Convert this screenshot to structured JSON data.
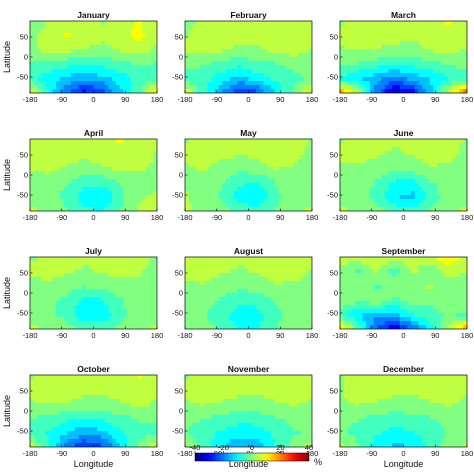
{
  "chart_data": {
    "type": "heatmap",
    "panels": [
      {
        "title": "January",
        "anomaly": [
          [
            -2,
            3,
            6,
            4,
            2,
            5,
            8,
            3
          ],
          [
            0,
            5,
            8,
            6,
            4,
            6,
            9,
            4
          ],
          [
            2,
            4,
            4,
            2,
            1,
            3,
            5,
            1
          ],
          [
            -3,
            -4,
            -6,
            -8,
            -6,
            -4,
            -2,
            -3
          ],
          [
            -6,
            -10,
            -14,
            -16,
            -14,
            -10,
            -6,
            -5
          ],
          [
            10,
            -8,
            -22,
            -30,
            -26,
            -14,
            -4,
            14
          ]
        ]
      },
      {
        "title": "February",
        "anomaly": [
          [
            0,
            4,
            6,
            4,
            3,
            5,
            6,
            2
          ],
          [
            2,
            6,
            6,
            5,
            3,
            5,
            7,
            3
          ],
          [
            3,
            5,
            3,
            1,
            2,
            4,
            5,
            2
          ],
          [
            -1,
            -2,
            -4,
            -6,
            -4,
            -3,
            -1,
            0
          ],
          [
            -4,
            -6,
            -10,
            -14,
            -10,
            -6,
            -4,
            -2
          ],
          [
            8,
            -6,
            -18,
            -28,
            -24,
            -12,
            -2,
            10
          ]
        ]
      },
      {
        "title": "March",
        "anomaly": [
          [
            2,
            5,
            7,
            5,
            4,
            6,
            8,
            4
          ],
          [
            3,
            6,
            6,
            5,
            4,
            6,
            7,
            4
          ],
          [
            2,
            3,
            2,
            1,
            0,
            3,
            4,
            2
          ],
          [
            -1,
            -3,
            -5,
            -8,
            -6,
            -4,
            -2,
            0
          ],
          [
            -8,
            -12,
            -16,
            -20,
            -16,
            -12,
            -8,
            -6
          ],
          [
            18,
            6,
            -20,
            -36,
            -30,
            -14,
            6,
            24
          ]
        ]
      },
      {
        "title": "April",
        "anomaly": [
          [
            3,
            6,
            5,
            4,
            6,
            8,
            6,
            3
          ],
          [
            4,
            7,
            5,
            4,
            6,
            7,
            5,
            2
          ],
          [
            3,
            4,
            2,
            0,
            2,
            4,
            3,
            2
          ],
          [
            1,
            0,
            -2,
            -6,
            -6,
            -2,
            1,
            2
          ],
          [
            2,
            0,
            -4,
            -10,
            -12,
            -4,
            2,
            3
          ],
          [
            3,
            2,
            -2,
            -6,
            -8,
            -2,
            3,
            4
          ]
        ]
      },
      {
        "title": "May",
        "anomaly": [
          [
            2,
            4,
            5,
            4,
            4,
            6,
            5,
            2
          ],
          [
            3,
            5,
            4,
            3,
            4,
            6,
            4,
            1
          ],
          [
            2,
            3,
            1,
            -1,
            1,
            3,
            2,
            1
          ],
          [
            2,
            1,
            -2,
            -6,
            -8,
            -2,
            0,
            1
          ],
          [
            3,
            1,
            -3,
            -10,
            -12,
            -4,
            1,
            2
          ],
          [
            3,
            2,
            0,
            -4,
            -6,
            -2,
            2,
            3
          ]
        ]
      },
      {
        "title": "June",
        "anomaly": [
          [
            2,
            4,
            4,
            3,
            4,
            5,
            4,
            2
          ],
          [
            3,
            4,
            3,
            2,
            3,
            5,
            4,
            1
          ],
          [
            2,
            2,
            1,
            -1,
            0,
            2,
            2,
            1
          ],
          [
            1,
            0,
            -3,
            -8,
            -9,
            -3,
            0,
            1
          ],
          [
            2,
            0,
            -4,
            -12,
            -14,
            -5,
            0,
            2
          ],
          [
            3,
            2,
            0,
            -4,
            -6,
            -2,
            2,
            3
          ]
        ]
      },
      {
        "title": "July",
        "anomaly": [
          [
            2,
            3,
            4,
            3,
            3,
            4,
            4,
            2
          ],
          [
            3,
            4,
            3,
            2,
            3,
            4,
            3,
            1
          ],
          [
            1,
            2,
            0,
            -2,
            -1,
            1,
            2,
            1
          ],
          [
            1,
            -1,
            -4,
            -9,
            -8,
            -3,
            0,
            1
          ],
          [
            2,
            0,
            -5,
            -12,
            -11,
            -4,
            1,
            2
          ],
          [
            3,
            2,
            0,
            -3,
            -4,
            -1,
            2,
            3
          ]
        ]
      },
      {
        "title": "August",
        "anomaly": [
          [
            3,
            5,
            4,
            3,
            4,
            6,
            5,
            3
          ],
          [
            3,
            5,
            3,
            2,
            3,
            5,
            4,
            2
          ],
          [
            2,
            2,
            0,
            -1,
            0,
            2,
            2,
            1
          ],
          [
            1,
            0,
            -3,
            -6,
            -6,
            -2,
            0,
            1
          ],
          [
            1,
            -2,
            -6,
            -10,
            -9,
            -4,
            0,
            1
          ],
          [
            2,
            0,
            -4,
            -8,
            -8,
            -3,
            1,
            2
          ]
        ]
      },
      {
        "title": "September",
        "anomaly": [
          [
            4,
            6,
            8,
            6,
            4,
            8,
            10,
            6
          ],
          [
            2,
            -4,
            3,
            -5,
            4,
            -3,
            6,
            2
          ],
          [
            -3,
            2,
            -4,
            3,
            -2,
            4,
            -3,
            1
          ],
          [
            3,
            -2,
            2,
            -4,
            1,
            -2,
            3,
            2
          ],
          [
            -6,
            -12,
            -16,
            -14,
            -8,
            -4,
            -2,
            -4
          ],
          [
            14,
            -4,
            -24,
            -32,
            -22,
            -10,
            4,
            18
          ]
        ]
      },
      {
        "title": "October",
        "anomaly": [
          [
            2,
            4,
            7,
            5,
            4,
            5,
            8,
            3
          ],
          [
            3,
            5,
            6,
            4,
            3,
            5,
            7,
            3
          ],
          [
            2,
            3,
            2,
            1,
            1,
            2,
            4,
            2
          ],
          [
            -2,
            -4,
            -6,
            -8,
            -6,
            -4,
            -2,
            -2
          ],
          [
            -4,
            -8,
            -12,
            -16,
            -14,
            -8,
            -4,
            -4
          ],
          [
            6,
            -6,
            -20,
            -28,
            -24,
            -12,
            -2,
            8
          ]
        ]
      },
      {
        "title": "November",
        "anomaly": [
          [
            2,
            4,
            6,
            4,
            3,
            5,
            7,
            3
          ],
          [
            3,
            5,
            5,
            4,
            3,
            5,
            6,
            3
          ],
          [
            2,
            3,
            2,
            1,
            1,
            2,
            3,
            2
          ],
          [
            -1,
            -2,
            -4,
            -6,
            -5,
            -3,
            -1,
            -1
          ],
          [
            -2,
            -6,
            -8,
            -10,
            -10,
            -6,
            -3,
            -2
          ],
          [
            4,
            -4,
            -12,
            -18,
            -16,
            -8,
            0,
            6
          ]
        ]
      },
      {
        "title": "December",
        "anomaly": [
          [
            2,
            4,
            6,
            4,
            3,
            5,
            7,
            3
          ],
          [
            2,
            5,
            5,
            4,
            3,
            5,
            6,
            3
          ],
          [
            2,
            3,
            2,
            1,
            1,
            2,
            3,
            1
          ],
          [
            -1,
            -2,
            -4,
            -5,
            -4,
            -3,
            -1,
            -1
          ],
          [
            -2,
            -4,
            -7,
            -9,
            -8,
            -5,
            -2,
            -2
          ],
          [
            4,
            -2,
            -10,
            -14,
            -12,
            -6,
            0,
            4
          ]
        ]
      }
    ],
    "xlabel": "Longitude",
    "ylabel": "Latitude",
    "xticks": [
      "-180",
      "-90",
      "0",
      "90",
      "180"
    ],
    "xtick_values": [
      -180,
      -90,
      0,
      90,
      180
    ],
    "yticks": [
      "50",
      "0",
      "-50"
    ],
    "ytick_values": [
      50,
      0,
      -50
    ],
    "xlim": [
      -180,
      180
    ],
    "ylim": [
      -90,
      90
    ],
    "colorbar": {
      "ticks": [
        "-40",
        "-20",
        "0",
        "20",
        "40"
      ],
      "tick_values": [
        -40,
        -20,
        0,
        20,
        40
      ],
      "range": [
        -40,
        40
      ],
      "unit": "%",
      "colormap": "jet"
    }
  }
}
